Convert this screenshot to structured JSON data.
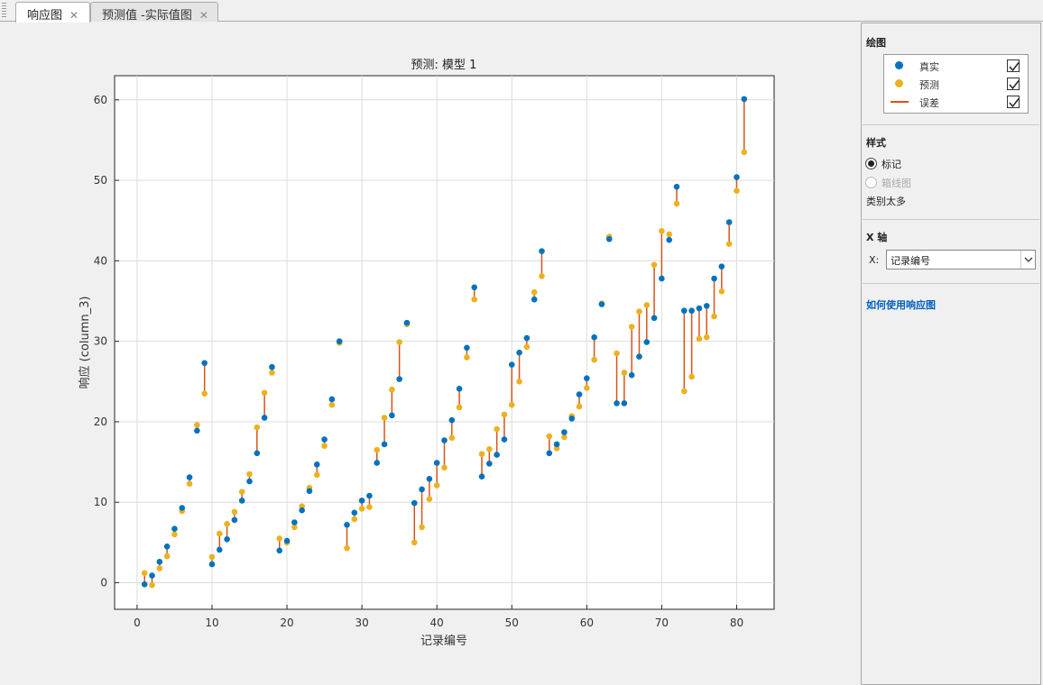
{
  "tabs": [
    {
      "label": "响应图",
      "active": true
    },
    {
      "label": "预测值 -实际值图",
      "active": false
    }
  ],
  "tab_close_glyph": "✕",
  "panel": {
    "plot_section": "绘图",
    "legend": [
      {
        "label": "真实",
        "symbol": "dot",
        "color": "#0072bd",
        "checked": true
      },
      {
        "label": "预测",
        "symbol": "dot",
        "color": "#edb120",
        "checked": true
      },
      {
        "label": "误差",
        "symbol": "line",
        "color": "#d95319",
        "checked": true
      }
    ],
    "style_section": "样式",
    "style_options": [
      {
        "label": "标记",
        "selected": true,
        "enabled": true
      },
      {
        "label": "箱线图",
        "selected": false,
        "enabled": false
      }
    ],
    "style_note": "类别太多",
    "xaxis_section": "X 轴",
    "x_label": "X:",
    "x_value": "记录编号",
    "help_link": "如何使用响应图"
  },
  "chart_data": {
    "type": "scatter",
    "title": "预测: 模型 1",
    "xlabel": "记录编号",
    "ylabel": "响应 (column_3)",
    "xlim": [
      -3,
      85
    ],
    "ylim": [
      -3.3,
      63
    ],
    "xticks": [
      0,
      10,
      20,
      30,
      40,
      50,
      60,
      70,
      80
    ],
    "yticks": [
      0,
      10,
      20,
      30,
      40,
      50,
      60
    ],
    "grid": true,
    "colors": {
      "true": "#0072bd",
      "pred": "#edb120",
      "error": "#d95319"
    },
    "x": [
      1,
      2,
      3,
      4,
      5,
      6,
      7,
      8,
      9,
      10,
      11,
      12,
      13,
      14,
      15,
      16,
      17,
      18,
      19,
      20,
      21,
      22,
      23,
      24,
      25,
      26,
      27,
      28,
      29,
      30,
      31,
      32,
      33,
      34,
      35,
      36,
      37,
      38,
      39,
      40,
      41,
      42,
      43,
      44,
      45,
      46,
      47,
      48,
      49,
      50,
      51,
      52,
      53,
      54,
      55,
      56,
      57,
      58,
      59,
      60,
      61,
      62,
      63,
      64,
      65,
      66,
      67,
      68,
      69,
      70,
      71,
      72,
      73,
      74,
      75,
      76,
      77,
      78,
      79,
      80,
      81
    ],
    "series": [
      {
        "name": "真实",
        "values": [
          -0.2,
          0.9,
          2.6,
          4.5,
          6.7,
          9.3,
          13.1,
          18.9,
          27.3,
          2.3,
          4.1,
          5.4,
          7.8,
          10.2,
          12.6,
          16.1,
          20.5,
          26.8,
          4.0,
          5.2,
          7.5,
          9.0,
          11.4,
          14.7,
          17.8,
          22.8,
          30.0,
          7.2,
          8.7,
          10.2,
          10.8,
          14.9,
          17.2,
          20.8,
          25.3,
          32.3,
          9.9,
          11.6,
          12.9,
          14.9,
          17.7,
          20.2,
          24.1,
          29.2,
          36.7,
          13.2,
          14.8,
          15.9,
          17.8,
          27.1,
          28.6,
          30.4,
          35.2,
          41.2,
          16.1,
          17.2,
          18.7,
          20.4,
          23.4,
          25.4,
          30.5,
          34.6,
          42.7,
          22.3,
          22.3,
          25.8,
          28.1,
          29.9,
          32.9,
          37.8,
          42.6,
          49.2,
          33.8,
          33.8,
          34.1,
          34.4,
          37.8,
          39.3,
          44.8,
          50.4,
          60.1
        ]
      },
      {
        "name": "预测",
        "values": [
          1.2,
          -0.3,
          1.8,
          3.3,
          6.0,
          8.9,
          12.3,
          19.6,
          23.5,
          3.2,
          6.1,
          7.3,
          8.8,
          11.3,
          13.5,
          19.3,
          23.6,
          26.1,
          5.5,
          5.0,
          6.9,
          9.5,
          11.8,
          13.4,
          17.0,
          22.1,
          29.8,
          4.3,
          7.9,
          9.2,
          9.4,
          16.5,
          20.5,
          24.0,
          29.9,
          32.1,
          5.0,
          6.9,
          10.4,
          12.1,
          14.3,
          18.0,
          21.8,
          28.0,
          35.2,
          16.0,
          16.6,
          19.1,
          20.9,
          22.1,
          25.0,
          29.3,
          36.1,
          38.1,
          18.2,
          16.7,
          18.1,
          20.7,
          21.9,
          24.2,
          27.7,
          34.7,
          43.0,
          28.5,
          26.1,
          31.8,
          33.7,
          34.5,
          39.5,
          43.7,
          43.3,
          47.1,
          23.8,
          25.6,
          30.3,
          30.5,
          33.1,
          36.2,
          42.1,
          48.7,
          53.5
        ]
      }
    ]
  }
}
